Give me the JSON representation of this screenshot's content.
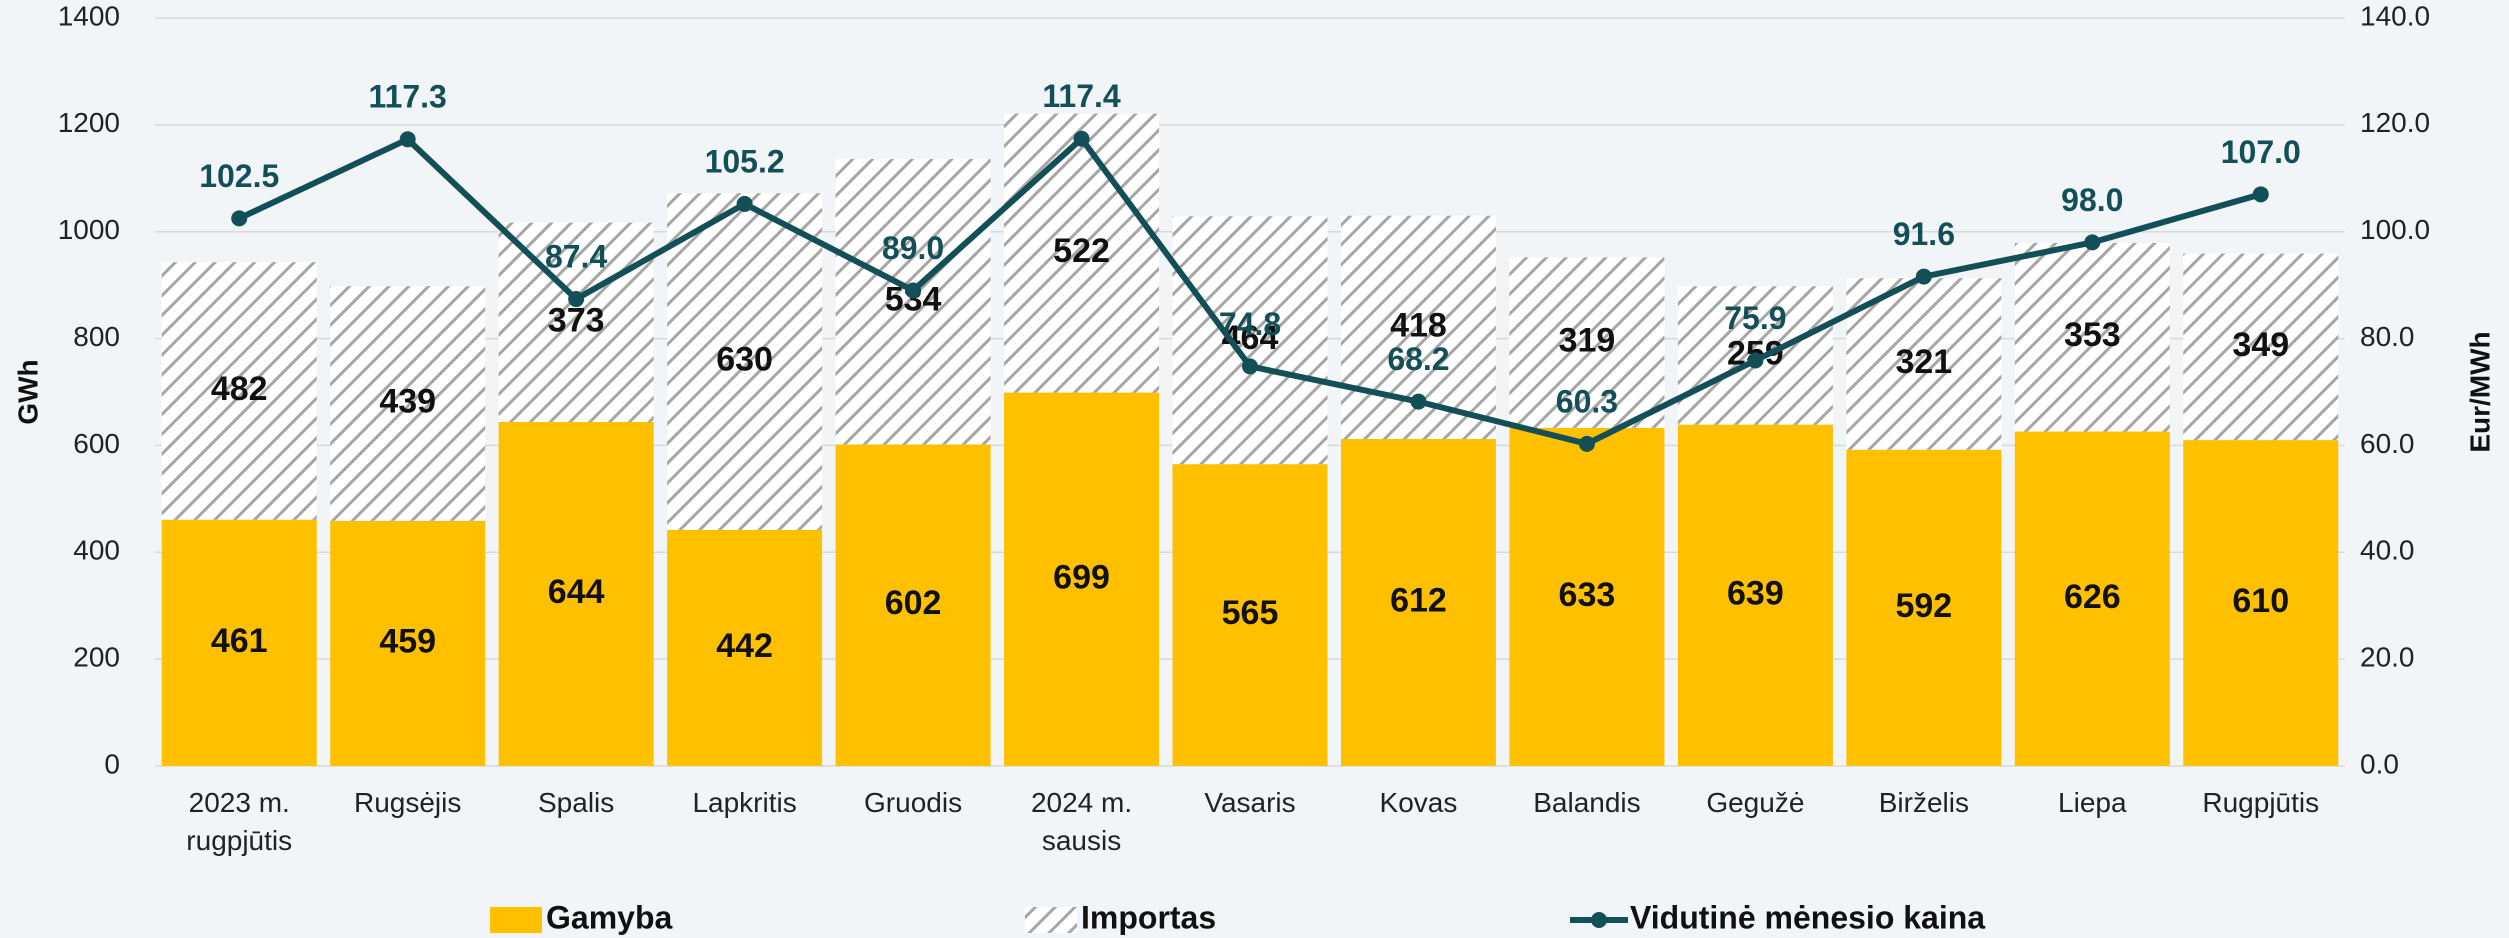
{
  "chart_data": {
    "type": "bar-line",
    "categories": [
      "2023 m.\nrugpjūtis",
      "Rugsėjis",
      "Spalis",
      "Lapkritis",
      "Gruodis",
      "2024 m.\nsausis",
      "Vasaris",
      "Kovas",
      "Balandis",
      "Gegužė",
      "Birželis",
      "Liepa",
      "Rugpjūtis"
    ],
    "series": [
      {
        "name": "Gamyba",
        "color": "#ffc000",
        "values": [
          461,
          459,
          644,
          442,
          602,
          699,
          565,
          612,
          633,
          639,
          592,
          626,
          610
        ]
      },
      {
        "name": "Importas",
        "color": "#a6a6a6",
        "pattern": "hatch",
        "values": [
          482,
          439,
          373,
          630,
          534,
          522,
          464,
          418,
          319,
          259,
          321,
          353,
          349
        ]
      },
      {
        "name": "Vidutinė mėnesio kaina",
        "color": "#124f57",
        "type": "line",
        "axis": "y2",
        "values": [
          102.5,
          117.3,
          87.4,
          105.2,
          89.0,
          117.4,
          74.8,
          68.2,
          60.3,
          75.9,
          91.6,
          98.0,
          107.0
        ],
        "value_labels": [
          "102.5",
          "117.3",
          "87.4",
          "105.2",
          "89.0",
          "117.4",
          "74.8",
          "68.2",
          "60.3",
          "75.9",
          "91.6",
          "98.0",
          "107.0"
        ]
      }
    ],
    "y_label": "GWh",
    "y2_label": "Eur/MWh",
    "ylim": [
      0,
      1400
    ],
    "yticks": [
      0,
      200,
      400,
      600,
      800,
      1000,
      1200,
      1400
    ],
    "y2lim": [
      0,
      140
    ],
    "y2ticks": [
      {
        "value": 0,
        "label": "0.0"
      },
      {
        "value": 20,
        "label": "20.0"
      },
      {
        "value": 40,
        "label": "40.0"
      },
      {
        "value": 60,
        "label": "60.0"
      },
      {
        "value": 80,
        "label": "80.0"
      },
      {
        "value": 100,
        "label": "100.0"
      },
      {
        "value": 120,
        "label": "120.0"
      },
      {
        "value": 140,
        "label": "140.0"
      }
    ],
    "grid": true,
    "legend": "bottom"
  }
}
